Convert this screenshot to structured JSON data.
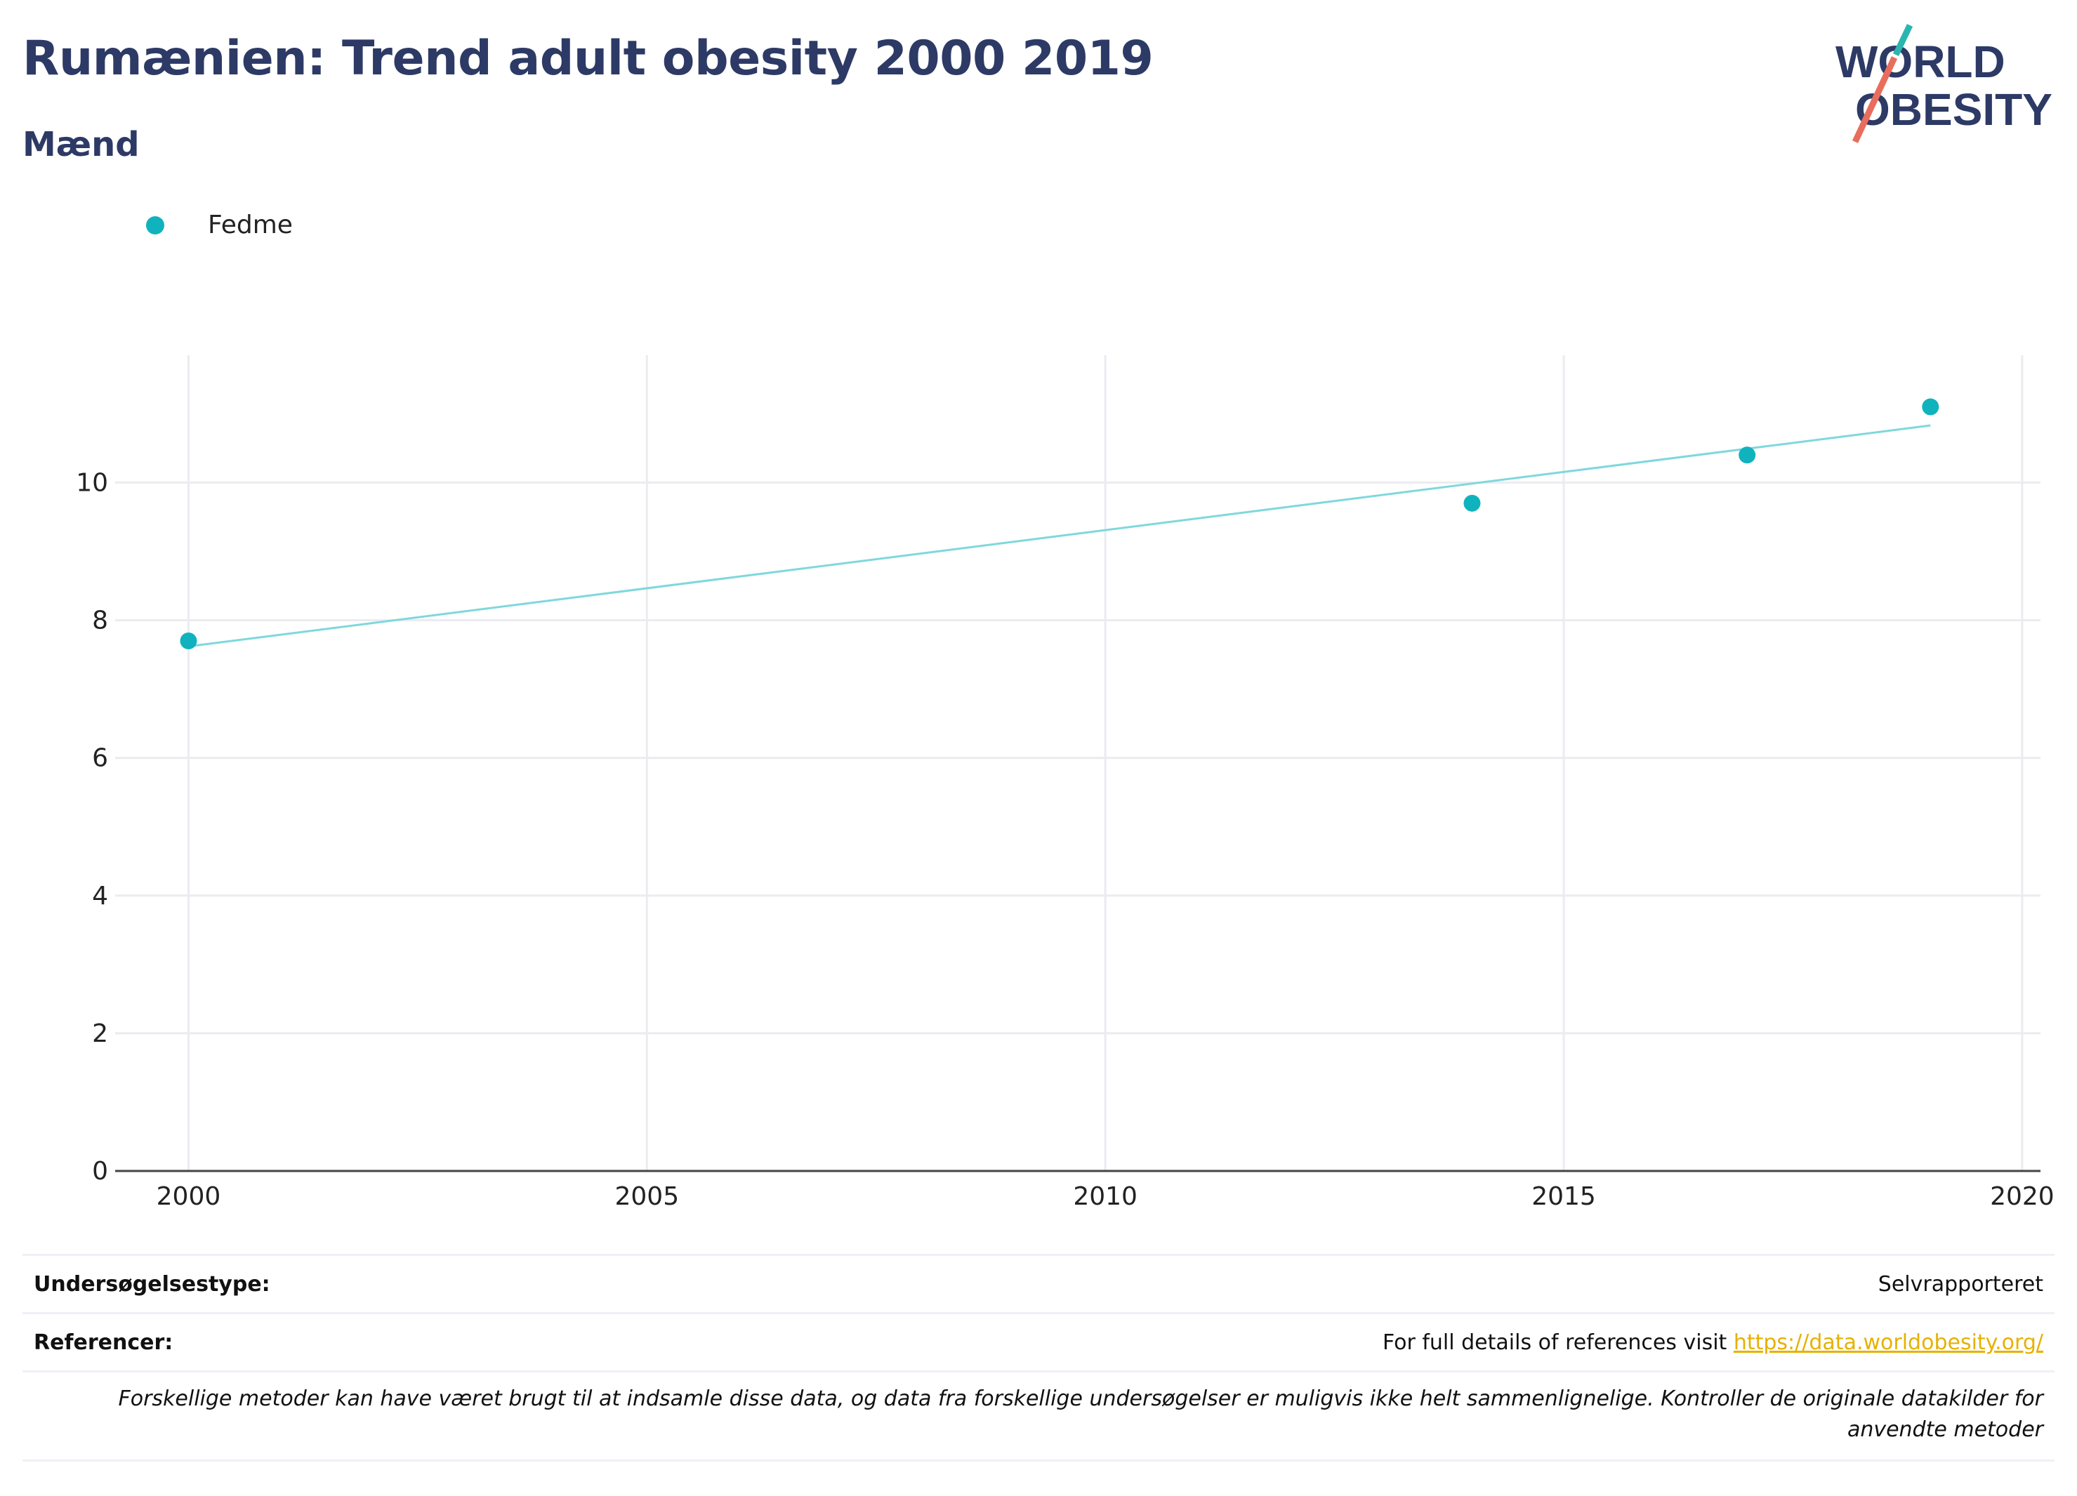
{
  "header": {
    "title": "Rumænien: Trend adult obesity 2000 2019",
    "subtitle": "Mænd"
  },
  "logo": {
    "line1": "WORLD",
    "line2": "OBESITY"
  },
  "legend": {
    "label": "Fedme",
    "color": "#10b3bd"
  },
  "chart_data": {
    "type": "scatter",
    "title": "Rumænien: Trend adult obesity 2000 2019",
    "subtitle": "Mænd",
    "series": [
      {
        "name": "Fedme",
        "color": "#10b3bd",
        "x": [
          2000,
          2014,
          2017,
          2019
        ],
        "y": [
          7.7,
          9.7,
          10.4,
          11.1
        ]
      }
    ],
    "trendline": {
      "color": "#7fd8dc",
      "x": [
        2000,
        2019
      ],
      "y": [
        7.62,
        10.83
      ]
    },
    "xlim": [
      1999.2,
      2020.2
    ],
    "ylim": [
      0,
      11.85
    ],
    "xticks": [
      2000,
      2005,
      2010,
      2015,
      2020
    ],
    "yticks": [
      0,
      2,
      4,
      6,
      8,
      10
    ],
    "xlabel": "",
    "ylabel": "",
    "grid": true,
    "legend_position": "top-left"
  },
  "footer": {
    "survey_label": "Undersøgelsestype:",
    "survey_value": "Selvrapporteret",
    "ref_label": "Referencer:",
    "ref_text": "For full details of references visit ",
    "ref_link": "https://data.worldobesity.org/",
    "note": "Forskellige metoder kan have været brugt til at indsamle disse data, og data fra forskellige undersøgelser er muligvis ikke helt sammenlignelige. Kontroller de originale datakilder for anvendte metoder"
  }
}
